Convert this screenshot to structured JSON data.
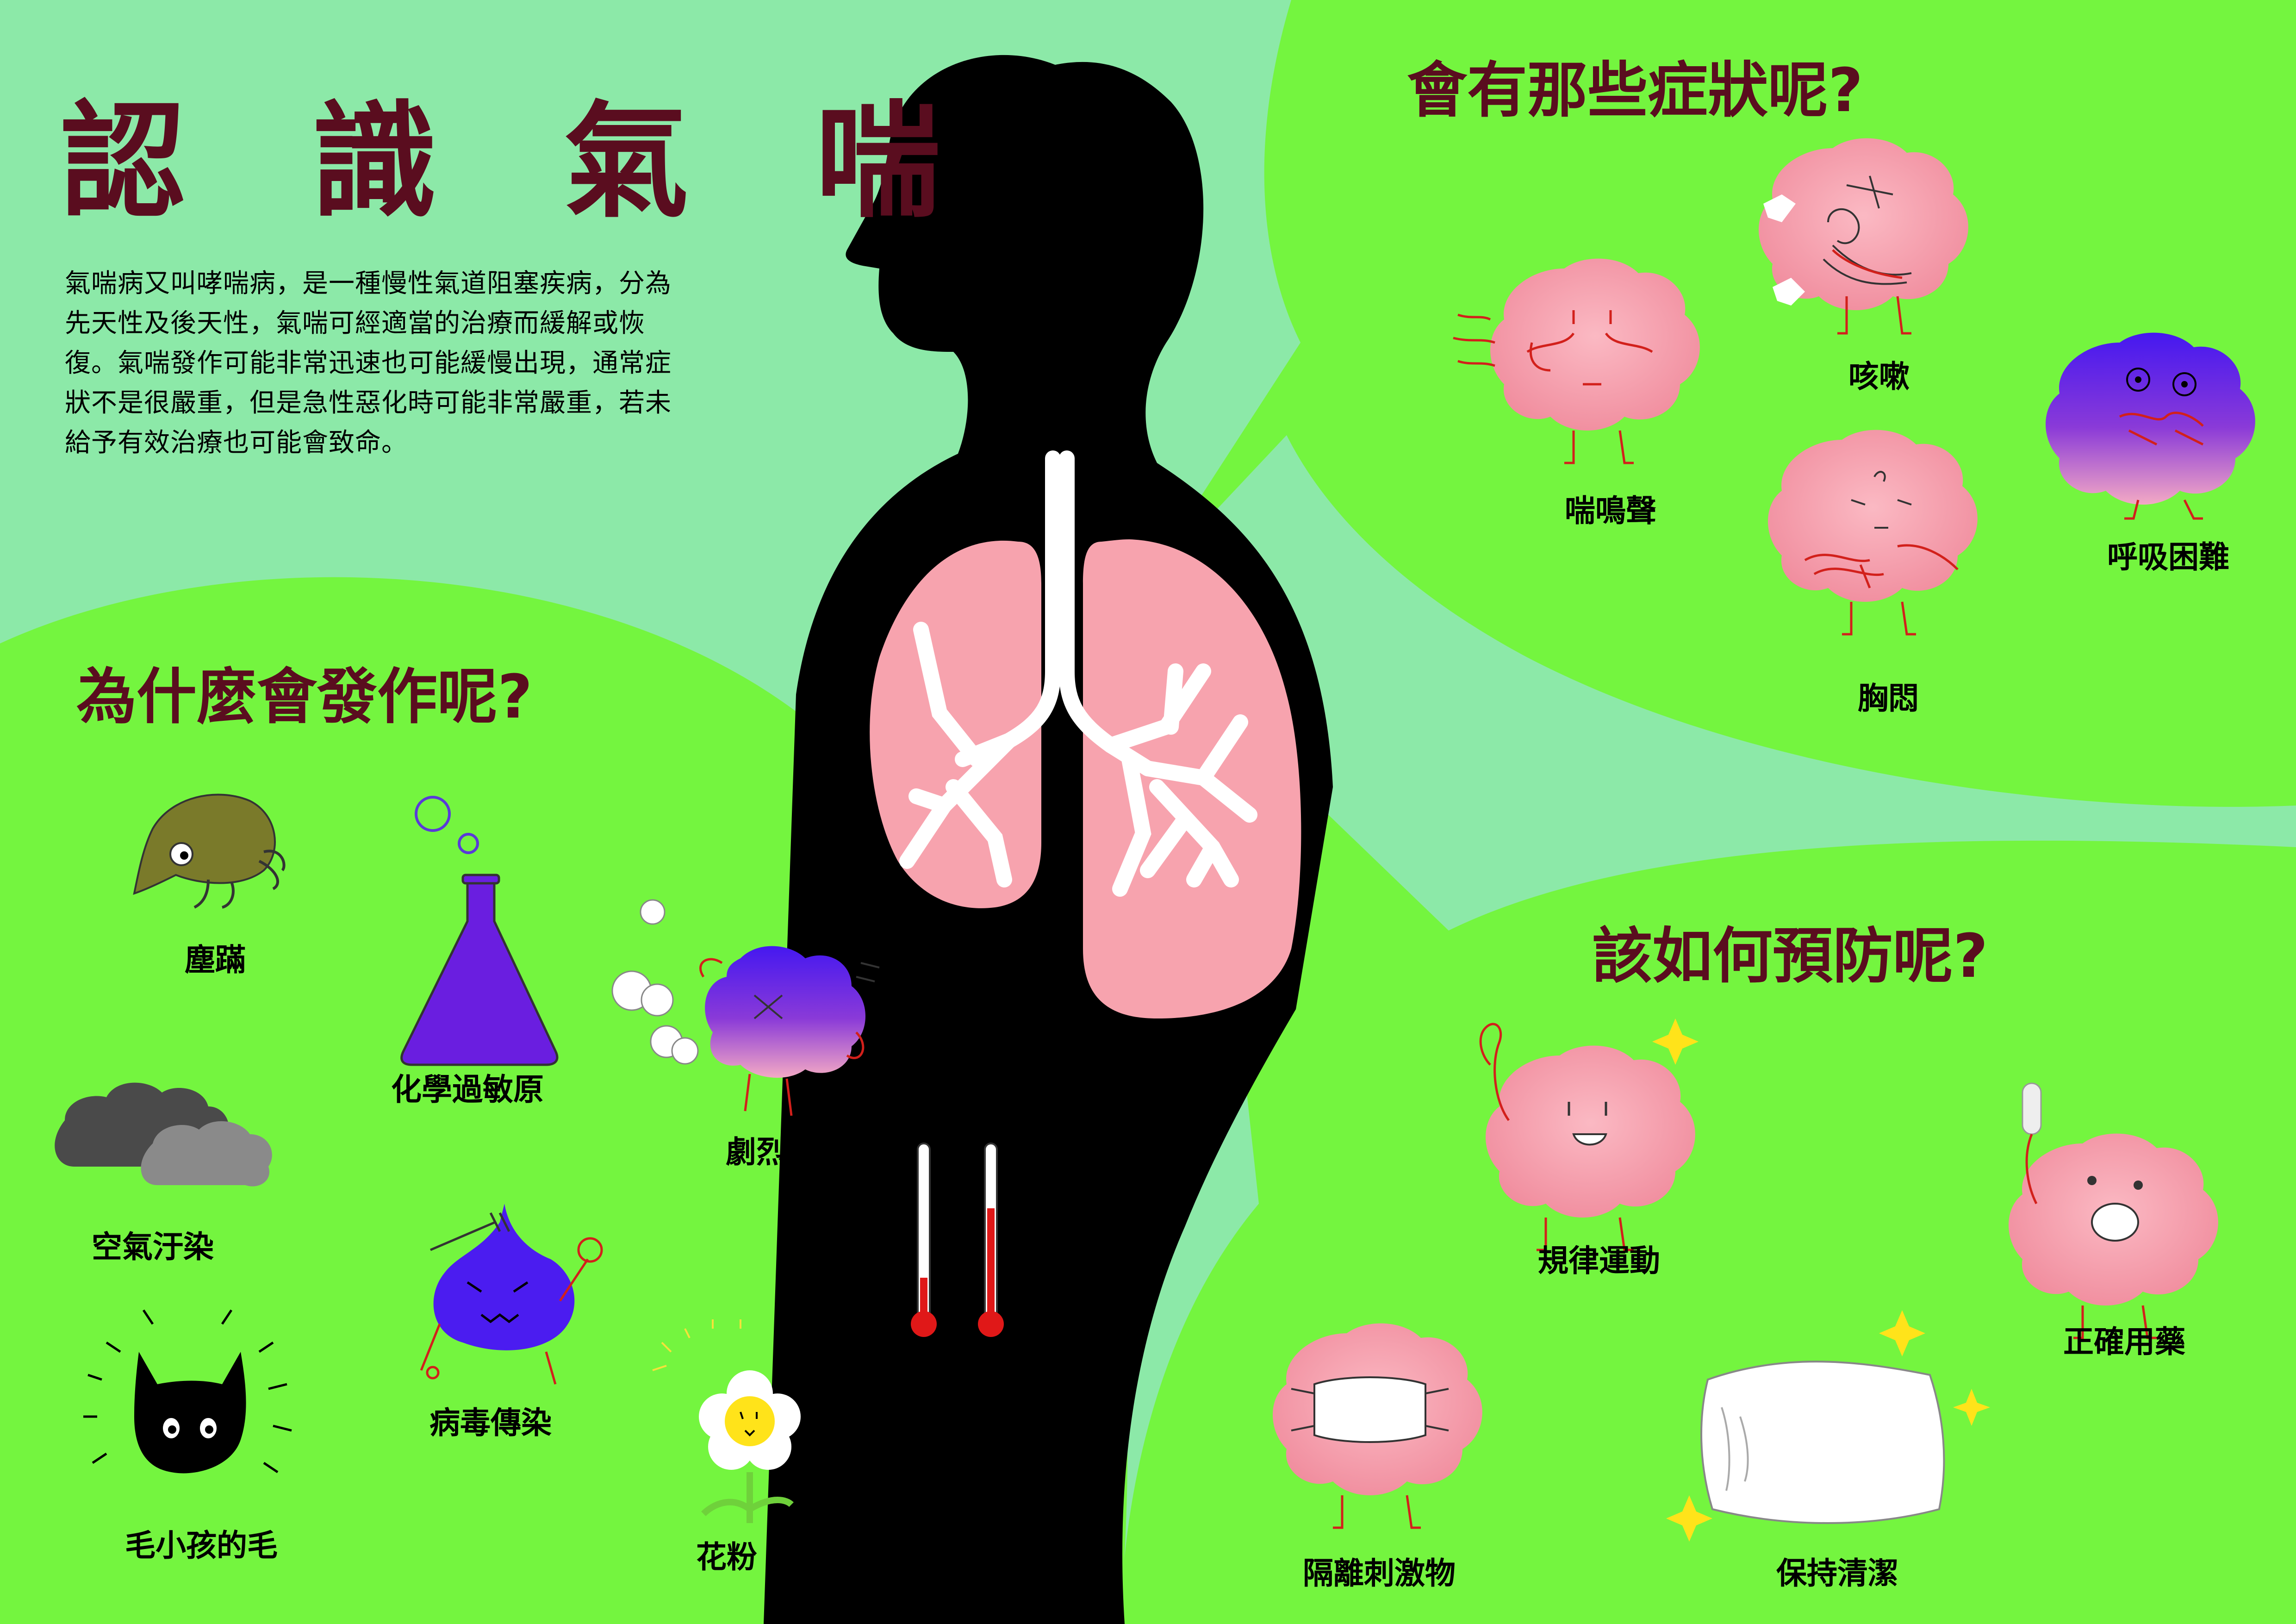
{
  "title": "認 識 氣 喘",
  "intro": "氣喘病又叫哮喘病，是一種慢性氣道阻塞疾病，分為先天性及後天性，氣喘可經適當的治療而緩解或恢復。氣喘發作可能非常迅速也可能緩慢出現，通常症狀不是很嚴重，但是急性惡化時可能非常嚴重，若未給予有效治療也可能會致命。",
  "sections": {
    "causes": {
      "heading": "為什麼會發作呢?",
      "items": [
        "塵蹣",
        "化學過敏原",
        "劇烈運動",
        "空氣汙染",
        "病毒傳染",
        "溫/濕度的驟變",
        "毛小孩的毛",
        "花粉"
      ]
    },
    "symptoms": {
      "heading": "會有那些症狀呢?",
      "items": [
        "咳嗽",
        "喘鳴聲",
        "呼吸困難",
        "胸悶"
      ]
    },
    "prevention": {
      "heading": "該如何預防呢?",
      "items": [
        "規律運動",
        "正確用藥",
        "隔離刺激物",
        "保持清潔"
      ]
    }
  },
  "colors": {
    "background": "#8ce9a8",
    "bubble": "#74f53f",
    "title": "#5a0d1f",
    "silhouette": "#000000",
    "lung": "#f7a3ae",
    "blob": "#f49aaa",
    "virus": "#4b1cf0",
    "flask": "#6a1ee0",
    "thermometer": "#e01818"
  }
}
